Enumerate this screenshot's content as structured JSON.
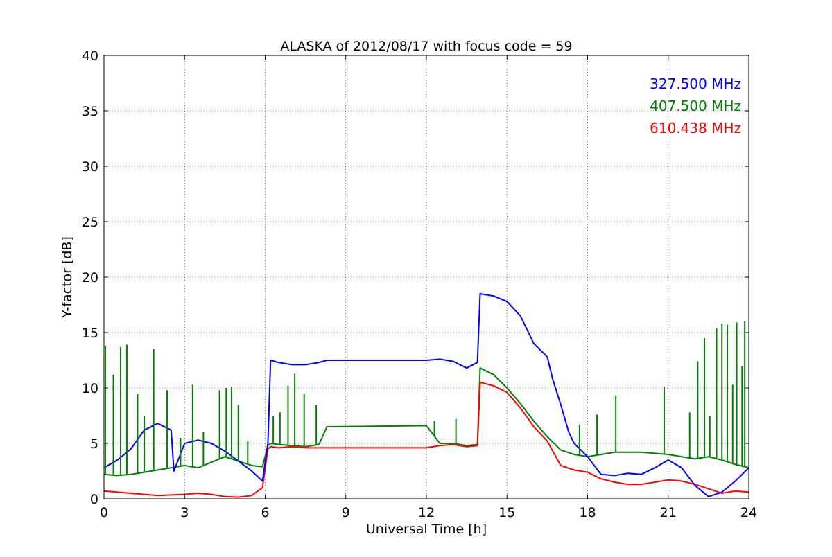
{
  "chart_data": {
    "type": "line",
    "title": "ALASKA of 2012/08/17 with focus code = 59",
    "xlabel": "Universal Time [h]",
    "ylabel": "Y-factor [dB]",
    "xlim": [
      0,
      24
    ],
    "ylim": [
      0,
      40
    ],
    "xticks": [
      0,
      3,
      6,
      9,
      12,
      15,
      18,
      21,
      24
    ],
    "yticks": [
      0,
      5,
      10,
      15,
      20,
      25,
      30,
      35,
      40
    ],
    "grid": true,
    "legend_position": "top-right",
    "series": [
      {
        "name": "327.500 MHz",
        "color": "#0000ff",
        "x": [
          0,
          0.5,
          1,
          1.5,
          2,
          2.5,
          2.6,
          3,
          3.5,
          4,
          4.5,
          5,
          5.5,
          5.9,
          6.1,
          6.2,
          6.5,
          7,
          7.5,
          8,
          8.3,
          12,
          12.5,
          13,
          13.5,
          13.9,
          14,
          14.5,
          15,
          15.5,
          16,
          16.5,
          16.7,
          17,
          17.3,
          17.5,
          18,
          18.5,
          19,
          19.5,
          20,
          20.5,
          21,
          21.5,
          22,
          22.5,
          23,
          23.5,
          24
        ],
        "y": [
          2.8,
          3.5,
          4.5,
          6.2,
          6.8,
          6.2,
          2.5,
          5.0,
          5.3,
          5.0,
          4.3,
          3.4,
          2.5,
          1.6,
          5.0,
          12.5,
          12.3,
          12.1,
          12.1,
          12.3,
          12.5,
          12.5,
          12.6,
          12.4,
          11.8,
          12.3,
          18.5,
          18.3,
          17.8,
          16.5,
          14.0,
          12.8,
          10.8,
          8.5,
          6.0,
          5.0,
          3.8,
          2.2,
          2.1,
          2.3,
          2.2,
          2.8,
          3.5,
          2.8,
          1.2,
          0.2,
          0.6,
          1.6,
          2.8
        ]
      },
      {
        "name": "407.500 MHz",
        "color": "#008000",
        "x": [
          0,
          0.5,
          1,
          1.5,
          2,
          2.5,
          3,
          3.5,
          4,
          4.5,
          5,
          5.5,
          5.9,
          6.1,
          6.2,
          6.5,
          7,
          7.5,
          8,
          8.3,
          12,
          12.5,
          13,
          13.5,
          13.9,
          14,
          14.5,
          15,
          15.5,
          16,
          16.5,
          17,
          17.5,
          18,
          18.5,
          19,
          19.5,
          20,
          20.5,
          21,
          21.5,
          22,
          22.5,
          23,
          23.5,
          24
        ],
        "y": [
          2.2,
          2.1,
          2.2,
          2.4,
          2.6,
          2.8,
          3.0,
          2.8,
          3.3,
          3.8,
          3.4,
          3.0,
          2.9,
          4.8,
          5.0,
          4.9,
          4.8,
          4.7,
          4.9,
          6.5,
          6.6,
          5.0,
          5.0,
          4.8,
          4.9,
          11.8,
          11.2,
          10.0,
          8.6,
          7.0,
          5.6,
          4.4,
          4.0,
          3.8,
          4.0,
          4.2,
          4.2,
          4.2,
          4.1,
          4.0,
          3.8,
          3.6,
          3.8,
          3.5,
          3.1,
          2.8
        ]
      },
      {
        "name": "610.438 MHz",
        "color": "#ff0000",
        "x": [
          0,
          0.5,
          1,
          1.5,
          2,
          2.5,
          3,
          3.5,
          4,
          4.5,
          5,
          5.5,
          5.9,
          6.1,
          6.2,
          6.5,
          7,
          7.5,
          8,
          8.3,
          12,
          12.5,
          13,
          13.5,
          13.9,
          14,
          14.5,
          15,
          15.5,
          16,
          16.5,
          17,
          17.5,
          18,
          18.5,
          19,
          19.5,
          20,
          20.5,
          21,
          21.5,
          22,
          22.5,
          23,
          23.5,
          24
        ],
        "y": [
          0.7,
          0.6,
          0.5,
          0.4,
          0.3,
          0.35,
          0.4,
          0.5,
          0.4,
          0.2,
          0.15,
          0.3,
          1.0,
          4.5,
          4.7,
          4.6,
          4.7,
          4.6,
          4.6,
          4.6,
          4.6,
          4.8,
          4.9,
          4.7,
          4.8,
          10.5,
          10.2,
          9.6,
          8.2,
          6.5,
          5.2,
          3.0,
          2.6,
          2.4,
          1.8,
          1.5,
          1.3,
          1.3,
          1.5,
          1.7,
          1.6,
          1.3,
          0.9,
          0.5,
          0.7,
          0.6
        ]
      }
    ],
    "spikes": [
      {
        "series": 1,
        "x": 0.05,
        "top": 13.8
      },
      {
        "series": 1,
        "x": 0.35,
        "top": 11.2
      },
      {
        "series": 1,
        "x": 0.62,
        "top": 13.7
      },
      {
        "series": 1,
        "x": 0.85,
        "top": 13.9
      },
      {
        "series": 1,
        "x": 1.25,
        "top": 9.5
      },
      {
        "series": 1,
        "x": 1.5,
        "top": 7.5
      },
      {
        "series": 1,
        "x": 1.85,
        "top": 13.5
      },
      {
        "series": 1,
        "x": 2.35,
        "top": 9.8
      },
      {
        "series": 1,
        "x": 2.85,
        "top": 5.5
      },
      {
        "series": 1,
        "x": 3.3,
        "top": 10.3
      },
      {
        "series": 1,
        "x": 3.7,
        "top": 6.0
      },
      {
        "series": 1,
        "x": 4.3,
        "top": 9.8
      },
      {
        "series": 1,
        "x": 4.55,
        "top": 10.0
      },
      {
        "series": 1,
        "x": 4.75,
        "top": 10.1
      },
      {
        "series": 1,
        "x": 5.0,
        "top": 8.5
      },
      {
        "series": 1,
        "x": 5.35,
        "top": 5.2
      },
      {
        "series": 1,
        "x": 6.3,
        "top": 7.5
      },
      {
        "series": 1,
        "x": 6.55,
        "top": 7.8
      },
      {
        "series": 1,
        "x": 6.85,
        "top": 10.2
      },
      {
        "series": 1,
        "x": 7.1,
        "top": 11.3
      },
      {
        "series": 1,
        "x": 7.45,
        "top": 9.5
      },
      {
        "series": 1,
        "x": 7.9,
        "top": 8.5
      },
      {
        "series": 1,
        "x": 12.3,
        "top": 7.0
      },
      {
        "series": 1,
        "x": 13.1,
        "top": 7.2
      },
      {
        "series": 1,
        "x": 14.45,
        "top": 11.3
      },
      {
        "series": 1,
        "x": 17.7,
        "top": 6.7
      },
      {
        "series": 1,
        "x": 18.35,
        "top": 7.6
      },
      {
        "series": 1,
        "x": 19.05,
        "top": 9.3
      },
      {
        "series": 1,
        "x": 20.85,
        "top": 10.1
      },
      {
        "series": 1,
        "x": 21.8,
        "top": 7.8
      },
      {
        "series": 1,
        "x": 22.1,
        "top": 12.4
      },
      {
        "series": 1,
        "x": 22.35,
        "top": 14.5
      },
      {
        "series": 1,
        "x": 22.55,
        "top": 7.5
      },
      {
        "series": 1,
        "x": 22.8,
        "top": 15.4
      },
      {
        "series": 1,
        "x": 23.0,
        "top": 15.8
      },
      {
        "series": 1,
        "x": 23.2,
        "top": 15.7
      },
      {
        "series": 1,
        "x": 23.4,
        "top": 10.3
      },
      {
        "series": 1,
        "x": 23.55,
        "top": 15.9
      },
      {
        "series": 1,
        "x": 23.75,
        "top": 12.0
      },
      {
        "series": 1,
        "x": 23.85,
        "top": 16.0
      }
    ]
  }
}
